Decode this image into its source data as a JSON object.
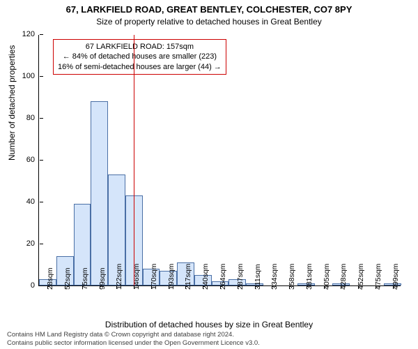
{
  "title": "67, LARKFIELD ROAD, GREAT BENTLEY, COLCHESTER, CO7 8PY",
  "subtitle": "Size of property relative to detached houses in Great Bentley",
  "chart": {
    "type": "histogram",
    "ylabel": "Number of detached properties",
    "xlabel": "Distribution of detached houses by size in Great Bentley",
    "ylim": [
      0,
      120
    ],
    "yticks": [
      0,
      20,
      40,
      60,
      80,
      100,
      120
    ],
    "x_labels": [
      "28sqm",
      "52sqm",
      "75sqm",
      "99sqm",
      "122sqm",
      "146sqm",
      "170sqm",
      "193sqm",
      "217sqm",
      "240sqm",
      "264sqm",
      "287sqm",
      "311sqm",
      "334sqm",
      "358sqm",
      "381sqm",
      "405sqm",
      "428sqm",
      "452sqm",
      "475sqm",
      "499sqm"
    ],
    "values": [
      3,
      14,
      39,
      88,
      53,
      43,
      8,
      7,
      11,
      5,
      2,
      3,
      1,
      0,
      0,
      1,
      0,
      1,
      0,
      0,
      1
    ],
    "bar_fill": "#d5e5fa",
    "bar_stroke": "#4a6fa5",
    "background": "#ffffff",
    "refline": {
      "x_index": 5.5,
      "color": "#cc0000"
    },
    "annotation": {
      "l1": "67 LARKFIELD ROAD: 157sqm",
      "l2": "← 84% of detached houses are smaller (223)",
      "l3": "16% of semi-detached houses are larger (44) →",
      "border": "#cc0000"
    }
  },
  "footer": {
    "l1": "Contains HM Land Registry data © Crown copyright and database right 2024.",
    "l2": "Contains public sector information licensed under the Open Government Licence v3.0."
  }
}
